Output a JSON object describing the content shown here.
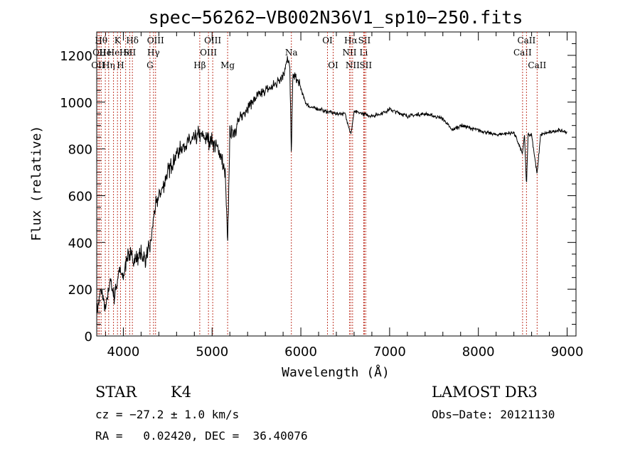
{
  "chart_data": {
    "type": "line",
    "title": "spec−56262−VB002N36V1_sp10−250.fits",
    "xlabel": "Wavelength (Å)",
    "ylabel": "Flux (relative)",
    "xlim": [
      3700,
      9100
    ],
    "ylim": [
      0,
      1300
    ],
    "x_ticks": [
      4000,
      5000,
      6000,
      7000,
      8000,
      9000
    ],
    "x_tick_labels": [
      "4000",
      "5000",
      "6000",
      "7000",
      "8000",
      "9000"
    ],
    "y_ticks": [
      0,
      200,
      400,
      600,
      800,
      1000,
      1200
    ],
    "y_tick_labels": [
      "0",
      "200",
      "400",
      "600",
      "800",
      "1000",
      "1200"
    ],
    "grid": false,
    "series": [
      {
        "x": [
          3700,
          3750,
          3800,
          3850,
          3900,
          3950,
          4000,
          4050,
          4100,
          4150,
          4200,
          4250,
          4300,
          4350,
          4400,
          4450,
          4500,
          4600,
          4700,
          4800,
          4850,
          4900,
          4950,
          5000,
          5050,
          5100,
          5150,
          5175,
          5200,
          5250,
          5300,
          5400,
          5500,
          5600,
          5700,
          5800,
          5850,
          5875,
          5893,
          5910,
          5950,
          6000,
          6050,
          6100,
          6200,
          6300,
          6400,
          6500,
          6563,
          6600,
          6700,
          6800,
          6900,
          7000,
          7200,
          7400,
          7600,
          7700,
          7800,
          8000,
          8200,
          8400,
          8498,
          8520,
          8542,
          8560,
          8600,
          8662,
          8700,
          8800,
          8900,
          9000
        ],
        "y": [
          100,
          200,
          110,
          240,
          160,
          280,
          250,
          360,
          330,
          330,
          350,
          330,
          380,
          530,
          600,
          640,
          700,
          780,
          820,
          840,
          860,
          850,
          840,
          830,
          810,
          770,
          680,
          380,
          860,
          880,
          920,
          980,
          1020,
          1050,
          1070,
          1120,
          1180,
          1150,
          780,
          1120,
          1100,
          1060,
          1000,
          980,
          970,
          960,
          950,
          950,
          860,
          960,
          950,
          940,
          950,
          970,
          940,
          950,
          930,
          880,
          900,
          880,
          860,
          870,
          780,
          860,
          640,
          860,
          860,
          690,
          860,
          870,
          880,
          870
        ]
      }
    ],
    "lines": [
      {
        "x": 3750,
        "label": "Hθ",
        "row": 0
      },
      {
        "x": 3730,
        "label": "OII",
        "row": 1
      },
      {
        "x": 3715,
        "label": "OII",
        "row": 2
      },
      {
        "x": 3797,
        "label": "He",
        "row": 1
      },
      {
        "x": 3835,
        "label": "Hη",
        "row": 2
      },
      {
        "x": 3889,
        "label": "He",
        "row": 1
      },
      {
        "x": 3934,
        "label": "K",
        "row": 0
      },
      {
        "x": 3968,
        "label": "H",
        "row": 2
      },
      {
        "x": 4026,
        "label": "He",
        "row": 1
      },
      {
        "x": 4072,
        "label": "SII",
        "row": 1
      },
      {
        "x": 4102,
        "label": "Hδ",
        "row": 0
      },
      {
        "x": 4300,
        "label": "G",
        "row": 2
      },
      {
        "x": 4340,
        "label": "Hγ",
        "row": 1
      },
      {
        "x": 4363,
        "label": "OIII",
        "row": 0
      },
      {
        "x": 4861,
        "label": "Hβ",
        "row": 2
      },
      {
        "x": 4959,
        "label": "OIII",
        "row": 1
      },
      {
        "x": 5007,
        "label": "OIII",
        "row": 0
      },
      {
        "x": 5175,
        "label": "Mg",
        "row": 2
      },
      {
        "x": 5893,
        "label": "Na",
        "row": 1
      },
      {
        "x": 6300,
        "label": "OI",
        "row": 0
      },
      {
        "x": 6364,
        "label": "OI",
        "row": 2
      },
      {
        "x": 6548,
        "label": "NII",
        "row": 1
      },
      {
        "x": 6563,
        "label": "Hα",
        "row": 0
      },
      {
        "x": 6583,
        "label": "NII",
        "row": 2
      },
      {
        "x": 6708,
        "label": "Li",
        "row": 1
      },
      {
        "x": 6716,
        "label": "SII",
        "row": 0
      },
      {
        "x": 6731,
        "label": "SII",
        "row": 2
      },
      {
        "x": 8498,
        "label": "CaII",
        "row": 1
      },
      {
        "x": 8542,
        "label": "CaII",
        "row": 0
      },
      {
        "x": 8662,
        "label": "CaII",
        "row": 2
      }
    ]
  },
  "info": {
    "class": "STAR",
    "subclass": "K4",
    "survey": "LAMOST DR3",
    "cz": "cz = −27.2 ± 1.0 km/s",
    "obs_date": "Obs−Date: 20121130",
    "coords": "RA =   0.02420, DEC =  36.40076"
  }
}
